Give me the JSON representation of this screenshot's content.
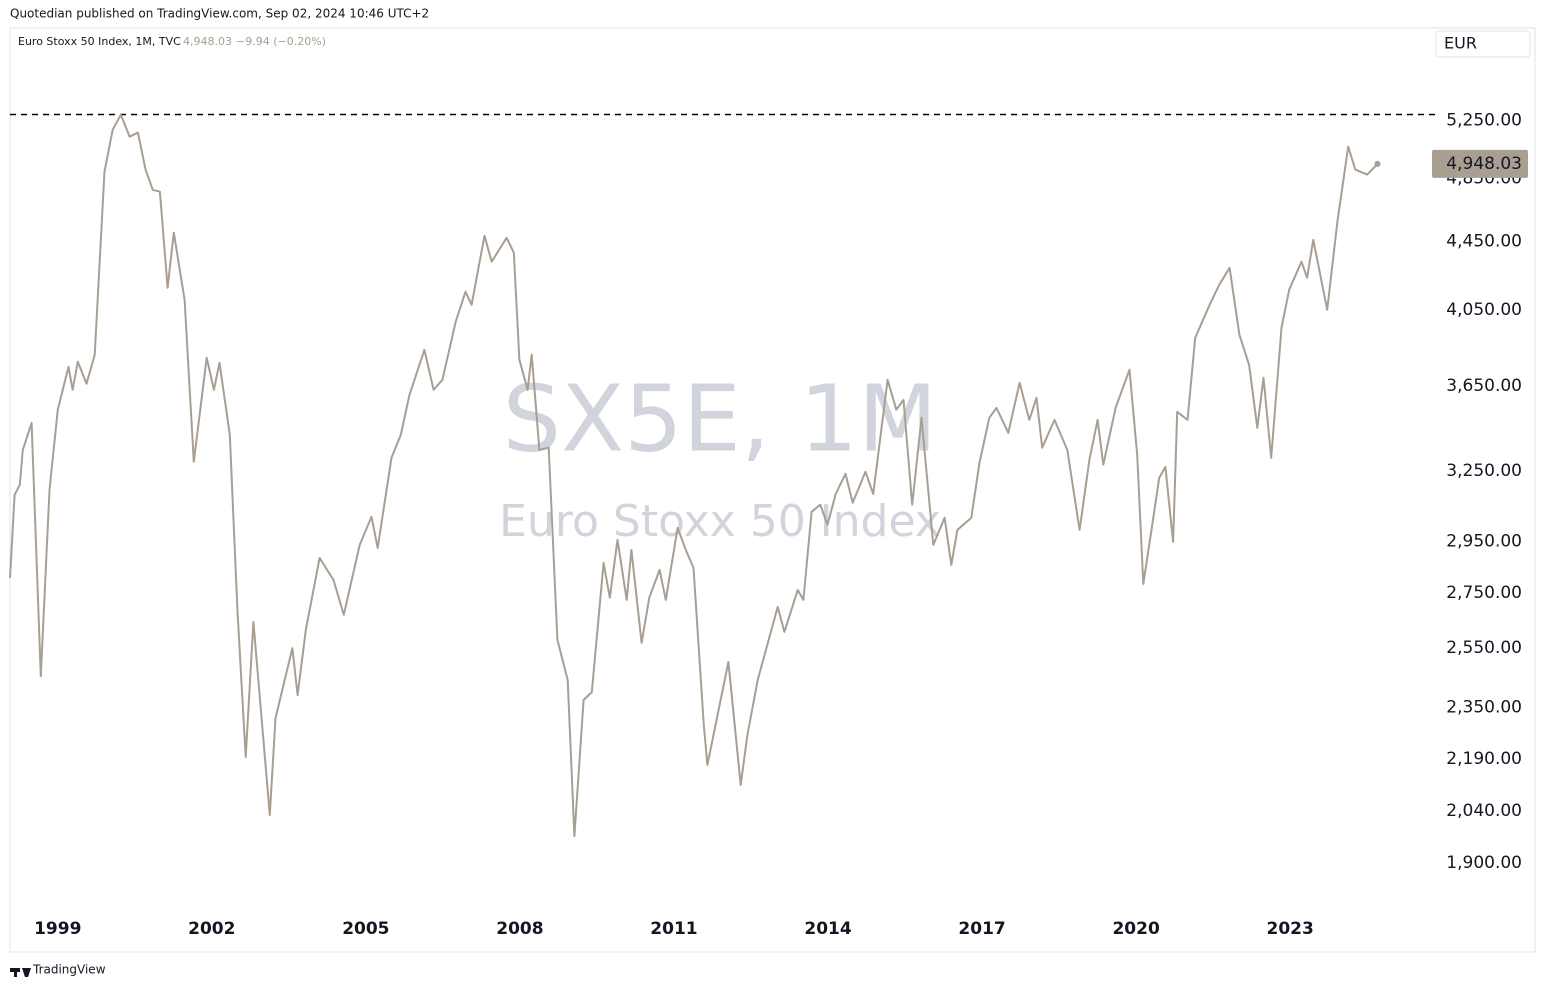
{
  "header": {
    "publisher": "Quotedian published on TradingView.com, Sep 02, 2024 10:46 UTC+2",
    "legend_symbol": "Euro Stoxx 50 Index, 1M, TVC",
    "legend_price": "4,948.03",
    "legend_change": "−9.94 (−0.20%)",
    "currency": "EUR",
    "watermark_symbol": "SX5E, 1M",
    "watermark_name": "Euro Stoxx 50 Index",
    "footer": "TradingView"
  },
  "chart_data": {
    "type": "line",
    "log_scale": true,
    "x": [
      1998.07,
      1998.16,
      1998.26,
      1998.32,
      1998.49,
      1998.67,
      1998.84,
      1999.0,
      1999.21,
      1999.29,
      1999.39,
      1999.56,
      1999.72,
      1999.91,
      2000.07,
      2000.23,
      2000.4,
      2000.56,
      2000.71,
      2000.85,
      2000.99,
      2001.14,
      2001.26,
      2001.47,
      2001.65,
      2001.9,
      2002.04,
      2002.15,
      2002.35,
      2002.5,
      2002.66,
      2002.81,
      2003.13,
      2003.24,
      2003.57,
      2003.67,
      2003.83,
      2004.1,
      2004.37,
      2004.57,
      2004.88,
      2005.11,
      2005.23,
      2005.5,
      2005.68,
      2005.85,
      2006.14,
      2006.32,
      2006.49,
      2006.75,
      2006.94,
      2007.06,
      2007.31,
      2007.45,
      2007.74,
      2007.88,
      2007.99,
      2008.15,
      2008.23,
      2008.38,
      2008.56,
      2008.73,
      2008.93,
      2009.06,
      2009.24,
      2009.4,
      2009.63,
      2009.75,
      2009.9,
      2010.08,
      2010.17,
      2010.37,
      2010.52,
      2010.72,
      2010.84,
      2011.07,
      2011.23,
      2011.38,
      2011.58,
      2011.65,
      2011.85,
      2012.06,
      2012.3,
      2012.43,
      2012.63,
      2013.02,
      2013.15,
      2013.41,
      2013.52,
      2013.68,
      2013.85,
      2013.99,
      2014.15,
      2014.34,
      2014.48,
      2014.73,
      2014.88,
      2015.16,
      2015.33,
      2015.47,
      2015.64,
      2015.82,
      2016.05,
      2016.27,
      2016.4,
      2016.52,
      2016.79,
      2016.95,
      2017.14,
      2017.28,
      2017.51,
      2017.73,
      2017.92,
      2018.06,
      2018.17,
      2018.41,
      2018.66,
      2018.9,
      2019.09,
      2019.25,
      2019.36,
      2019.6,
      2019.87,
      2020.02,
      2020.14,
      2020.3,
      2020.45,
      2020.57,
      2020.72,
      2020.8,
      2021.0,
      2021.15,
      2021.43,
      2021.62,
      2021.82,
      2022.01,
      2022.2,
      2022.36,
      2022.48,
      2022.63,
      2022.83,
      2022.98,
      2023.22,
      2023.33,
      2023.45,
      2023.72,
      2023.92,
      2024.13,
      2024.27,
      2024.5,
      2024.7
    ],
    "series": [
      {
        "name": "Euro Stoxx 50 Index",
        "color": "#a89e92",
        "values": [
          2807,
          3145,
          3189,
          3345,
          3471,
          2454,
          3167,
          3534,
          3748,
          3632,
          3774,
          3662,
          3810,
          4896,
          5186,
          5293,
          5136,
          5165,
          4909,
          4776,
          4763,
          4176,
          4504,
          4108,
          3291,
          3795,
          3632,
          3768,
          3415,
          2680,
          2197,
          2643,
          2029,
          2317,
          2550,
          2391,
          2614,
          2885,
          2799,
          2669,
          2937,
          3052,
          2925,
          3309,
          3415,
          3607,
          3836,
          3632,
          3682,
          3986,
          4154,
          4080,
          4485,
          4328,
          4472,
          4382,
          3784,
          3632,
          3810,
          3345,
          3355,
          2579,
          2441,
          1971,
          2375,
          2401,
          2865,
          2732,
          2957,
          2724,
          2917,
          2568,
          2732,
          2838,
          2724,
          3006,
          2917,
          2846,
          2295,
          2173,
          2327,
          2502,
          2114,
          2264,
          2441,
          2698,
          2607,
          2761,
          2724,
          3073,
          3103,
          3019,
          3149,
          3237,
          3111,
          3246,
          3149,
          3682,
          3534,
          3582,
          3103,
          3495,
          2937,
          3048,
          2858,
          2998,
          3048,
          3287,
          3495,
          3543,
          3424,
          3667,
          3485,
          3592,
          3355,
          3485,
          3345,
          2998,
          3300,
          3485,
          3278,
          3543,
          3733,
          3322,
          2784,
          2998,
          3219,
          3268,
          2949,
          3524,
          3485,
          3900,
          4080,
          4194,
          4292,
          3916,
          3758,
          3448,
          3692,
          3309,
          3954,
          4165,
          4328,
          4234,
          4460,
          4052,
          4572,
          5066,
          4909,
          4876,
          4948.03
        ]
      }
    ],
    "xlim": [
      1998.07,
      2025.82
    ],
    "xticks": [
      1999,
      2002,
      2005,
      2008,
      2011,
      2014,
      2017,
      2020,
      2023
    ],
    "ylim": [
      1682,
      5960
    ],
    "yticks": [
      {
        "value": 1900,
        "label": "1,900.00"
      },
      {
        "value": 2040,
        "label": "2,040.00"
      },
      {
        "value": 2190,
        "label": "2,190.00"
      },
      {
        "value": 2350,
        "label": "2,350.00"
      },
      {
        "value": 2550,
        "label": "2,550.00"
      },
      {
        "value": 2750,
        "label": "2,750.00"
      },
      {
        "value": 2950,
        "label": "2,950.00"
      },
      {
        "value": 3250,
        "label": "3,250.00"
      },
      {
        "value": 3650,
        "label": "3,650.00"
      },
      {
        "value": 4050,
        "label": "4,050.00"
      },
      {
        "value": 4450,
        "label": "4,450.00"
      },
      {
        "value": 4850,
        "label": "4,850.00"
      },
      {
        "value": 5250,
        "label": "5,250.00"
      }
    ],
    "last_price": {
      "value": 4948.03,
      "label": "4,948.03"
    },
    "reference_line": 5294
  }
}
